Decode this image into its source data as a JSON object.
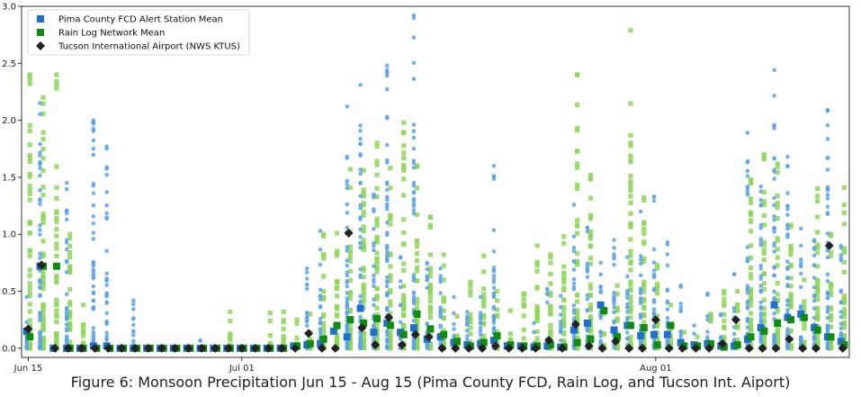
{
  "caption": "Figure 6: Monsoon Precipitation Jun 15 - Aug 15 (Pima County FCD, Rain Log, and Tucson Int. Aiport)",
  "chart_data": {
    "type": "scatter",
    "xlim_days": [
      -0.5,
      61.5
    ],
    "ylim": [
      -0.08,
      3.0
    ],
    "y_ticks": [
      0.0,
      0.5,
      1.0,
      1.5,
      2.0,
      2.5,
      3.0
    ],
    "y_tick_labels": [
      "0.0",
      "0.5",
      "1.0",
      "1.5",
      "2.0",
      "2.5",
      "3.0"
    ],
    "x_ticks": [
      {
        "day": 0,
        "label": "Jun 15"
      },
      {
        "day": 16,
        "label": "Jul 01"
      },
      {
        "day": 47,
        "label": "Aug 01"
      }
    ],
    "legend": {
      "placement": "upper-left",
      "entries": [
        {
          "name": "Pima County FCD Alert Station Mean",
          "color": "#1f6fd1",
          "marker": "square"
        },
        {
          "name": "Rain Log Network Mean",
          "color": "#118a11",
          "marker": "square"
        },
        {
          "name": "Tucson International Airport (NWS KTUS)",
          "color": "#222222",
          "marker": "diamond"
        }
      ]
    },
    "colors": {
      "pima_station_points": "#5ea3e6",
      "rainlog_station_points": "#8fd65a",
      "pima_mean": "#1f6fd1",
      "rainlog_mean": "#118a11",
      "airport": "#222222"
    },
    "days": [
      0,
      1,
      2,
      3,
      4,
      5,
      6,
      7,
      8,
      9,
      10,
      11,
      12,
      13,
      14,
      15,
      16,
      17,
      18,
      19,
      20,
      21,
      22,
      23,
      24,
      25,
      26,
      27,
      28,
      29,
      30,
      31,
      32,
      33,
      34,
      35,
      36,
      37,
      38,
      39,
      40,
      41,
      42,
      43,
      44,
      45,
      46,
      47,
      48,
      49,
      50,
      51,
      52,
      53,
      54,
      55,
      56,
      57,
      58,
      59,
      60,
      61
    ],
    "series": [
      {
        "name": "Pima County FCD Alert Station Mean",
        "values": [
          0.15,
          0.72,
          0,
          0,
          0,
          0.02,
          0.02,
          0,
          0,
          0,
          0,
          0,
          0,
          0,
          0,
          0,
          0,
          0,
          0,
          0,
          0.02,
          0.03,
          0.04,
          0.15,
          0.1,
          0.35,
          0.14,
          0.22,
          0.14,
          0.18,
          0.08,
          0.1,
          0.05,
          0.03,
          0.04,
          0.07,
          0.02,
          0.02,
          0.01,
          0.02,
          0.01,
          0.16,
          0.22,
          0.38,
          0.16,
          0.2,
          0.11,
          0.12,
          0.12,
          0.05,
          0.03,
          0.04,
          0.02,
          0.02,
          0.08,
          0.18,
          0.38,
          0.27,
          0.3,
          0.18,
          0.1,
          0.06
        ]
      },
      {
        "name": "Rain Log Network Mean",
        "values": [
          0.1,
          0.72,
          0.72,
          0,
          0,
          0,
          0,
          0,
          0,
          0,
          0,
          0,
          0,
          0,
          0,
          0,
          0,
          0,
          0,
          0,
          0.02,
          0.04,
          0.08,
          0.2,
          0.25,
          0.22,
          0.26,
          0.2,
          0.12,
          0.3,
          0.17,
          0.12,
          0.06,
          0.02,
          0.05,
          0.11,
          0.03,
          0.02,
          0.02,
          0.03,
          0.01,
          0.05,
          0.08,
          0.33,
          0.1,
          0.2,
          0.18,
          0.03,
          0.2,
          0.02,
          0.02,
          0.04,
          0.01,
          0.03,
          0.1,
          0.15,
          0.22,
          0.25,
          0.27,
          0.16,
          0.1,
          0.03
        ]
      },
      {
        "name": "Tucson International Airport (NWS KTUS)",
        "values": [
          0.17,
          0.73,
          0,
          0,
          0,
          0,
          0,
          0,
          0,
          0,
          0,
          0,
          0,
          0,
          0,
          0,
          0,
          0,
          0,
          0,
          0,
          0.13,
          0,
          0,
          1.01,
          0.18,
          0.03,
          0.27,
          0.03,
          0.12,
          0.1,
          0,
          0,
          0,
          0,
          0.02,
          0,
          0,
          0,
          0.07,
          0,
          0.21,
          0.02,
          0,
          0.06,
          0,
          0,
          0.25,
          0,
          0,
          0,
          0,
          0.04,
          0.25,
          0,
          0,
          0,
          0.08,
          0,
          0,
          0.9,
          0
        ]
      }
    ],
    "station_maxima": {
      "pima": [
        0.45,
        2.15,
        0,
        1.45,
        0,
        2.0,
        1.77,
        0,
        0.42,
        0,
        0,
        0,
        0,
        0.07,
        0,
        0,
        0,
        0,
        0,
        0,
        0,
        0.7,
        1.03,
        0,
        2.12,
        2.31,
        1.35,
        2.48,
        0.8,
        2.92,
        0.75,
        0.7,
        0.45,
        0.32,
        0.45,
        1.6,
        0,
        0,
        0.22,
        0.52,
        0.46,
        1.26,
        1.06,
        0.75,
        0.95,
        0.8,
        1.2,
        1.33,
        0.93,
        0.55,
        0.2,
        0.48,
        0.3,
        0.65,
        1.89,
        1.42,
        2.44,
        1.68,
        1.05,
        0.95,
        2.09,
        0.9
      ],
      "rainlog": [
        2.4,
        2.2,
        2.4,
        1.0,
        0.38,
        0,
        0,
        0,
        0,
        0,
        0,
        0,
        0,
        0,
        0,
        0.32,
        0,
        0,
        0.31,
        0.32,
        0.25,
        0.3,
        1.0,
        1.01,
        1.57,
        1.56,
        1.8,
        1.58,
        1.98,
        1.6,
        1.15,
        0.82,
        0.28,
        0.58,
        0.81,
        0.5,
        0.33,
        0.48,
        0.9,
        0.82,
        0.98,
        2.4,
        1.52,
        0.3,
        0.55,
        2.79,
        1.32,
        0.73,
        0.38,
        0.14,
        0.1,
        0.3,
        0.5,
        0.5,
        1.48,
        1.7,
        1.62,
        1.08,
        0.6,
        1.4,
        1.0,
        1.41
      ]
    }
  }
}
